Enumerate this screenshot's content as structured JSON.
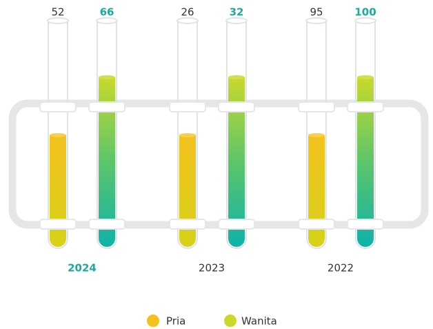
{
  "groups": [
    {
      "year": "2024",
      "pria": "52",
      "wanita": "66",
      "highlight": true
    },
    {
      "year": "2023",
      "pria": "26",
      "wanita": "32",
      "highlight": false
    },
    {
      "year": "2022",
      "pria": "95",
      "wanita": "100",
      "highlight": false
    }
  ],
  "legend": {
    "pria": "Pria",
    "wanita": "Wanita"
  }
}
